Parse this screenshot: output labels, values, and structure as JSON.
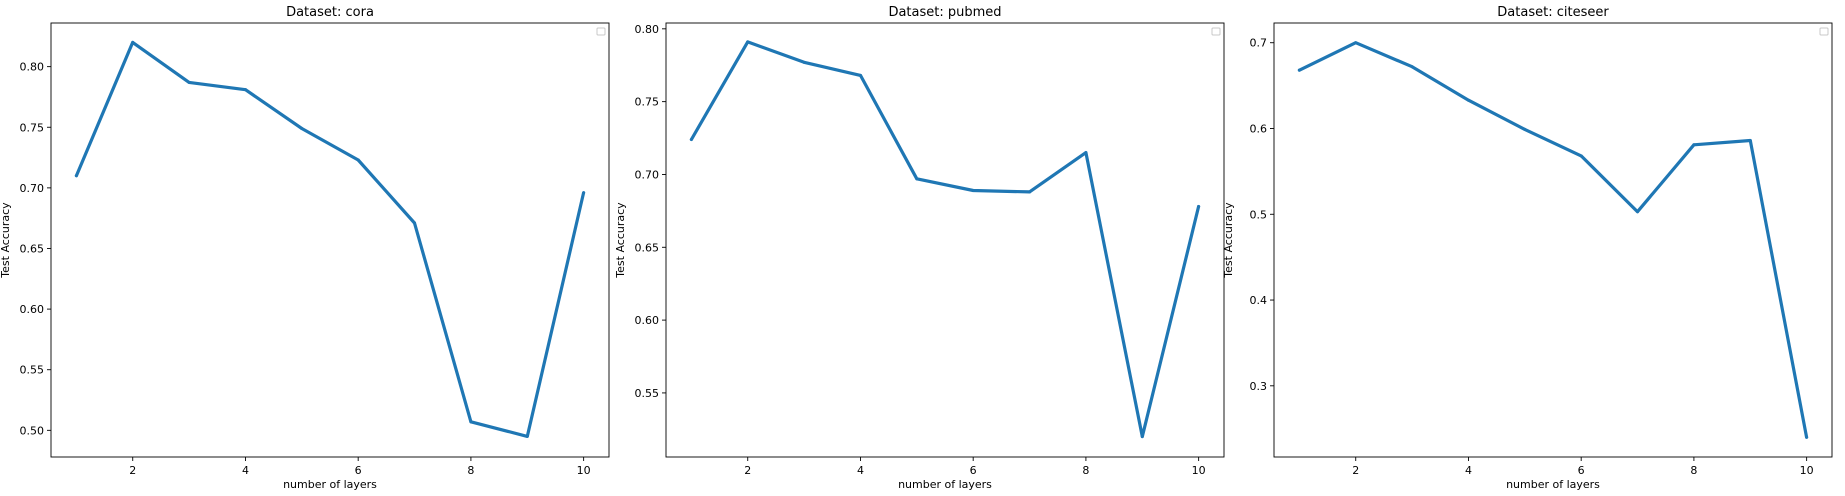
{
  "style": {
    "line_color": "#1f77b4"
  },
  "chart_data": [
    {
      "type": "line",
      "title": "Dataset: cora",
      "xlabel": "number of layers",
      "ylabel": "Test Accuracy",
      "xlim": [
        0.55,
        10.45
      ],
      "ylim": [
        0.478,
        0.836
      ],
      "xticks": [
        2,
        4,
        6,
        8,
        10
      ],
      "xtick_labels": [
        "2",
        "4",
        "6",
        "8",
        "10"
      ],
      "yticks": [
        0.5,
        0.55,
        0.6,
        0.65,
        0.7,
        0.75,
        0.8
      ],
      "ytick_labels": [
        "0.50",
        "0.55",
        "0.60",
        "0.65",
        "0.70",
        "0.75",
        "0.80"
      ],
      "legend": "top-right",
      "x": [
        1,
        2,
        3,
        4,
        5,
        6,
        7,
        8,
        9,
        10
      ],
      "y": [
        0.71,
        0.82,
        0.787,
        0.781,
        0.749,
        0.723,
        0.671,
        0.507,
        0.495,
        0.696
      ]
    },
    {
      "type": "line",
      "title": "Dataset: pubmed",
      "xlabel": "number of layers",
      "ylabel": "Test Accuracy",
      "xlim": [
        0.55,
        10.45
      ],
      "ylim": [
        0.506,
        0.804
      ],
      "xticks": [
        2,
        4,
        6,
        8,
        10
      ],
      "xtick_labels": [
        "2",
        "4",
        "6",
        "8",
        "10"
      ],
      "yticks": [
        0.55,
        0.6,
        0.65,
        0.7,
        0.75,
        0.8
      ],
      "ytick_labels": [
        "0.55",
        "0.60",
        "0.65",
        "0.70",
        "0.75",
        "0.80"
      ],
      "legend": "top-right",
      "x": [
        1,
        2,
        3,
        4,
        5,
        6,
        7,
        8,
        9,
        10
      ],
      "y": [
        0.724,
        0.791,
        0.777,
        0.768,
        0.697,
        0.689,
        0.688,
        0.715,
        0.52,
        0.678
      ]
    },
    {
      "type": "line",
      "title": "Dataset: citeseer",
      "xlabel": "number of layers",
      "ylabel": "Test Accuracy",
      "xlim": [
        0.55,
        10.45
      ],
      "ylim": [
        0.217,
        0.723
      ],
      "xticks": [
        2,
        4,
        6,
        8,
        10
      ],
      "xtick_labels": [
        "2",
        "4",
        "6",
        "8",
        "10"
      ],
      "yticks": [
        0.3,
        0.4,
        0.5,
        0.6,
        0.7
      ],
      "ytick_labels": [
        "0.3",
        "0.4",
        "0.5",
        "0.6",
        "0.7"
      ],
      "legend": "top-right",
      "x": [
        1,
        2,
        3,
        4,
        5,
        6,
        7,
        8,
        9,
        10
      ],
      "y": [
        0.668,
        0.7,
        0.672,
        0.633,
        0.599,
        0.568,
        0.503,
        0.581,
        0.586,
        0.24
      ]
    }
  ]
}
